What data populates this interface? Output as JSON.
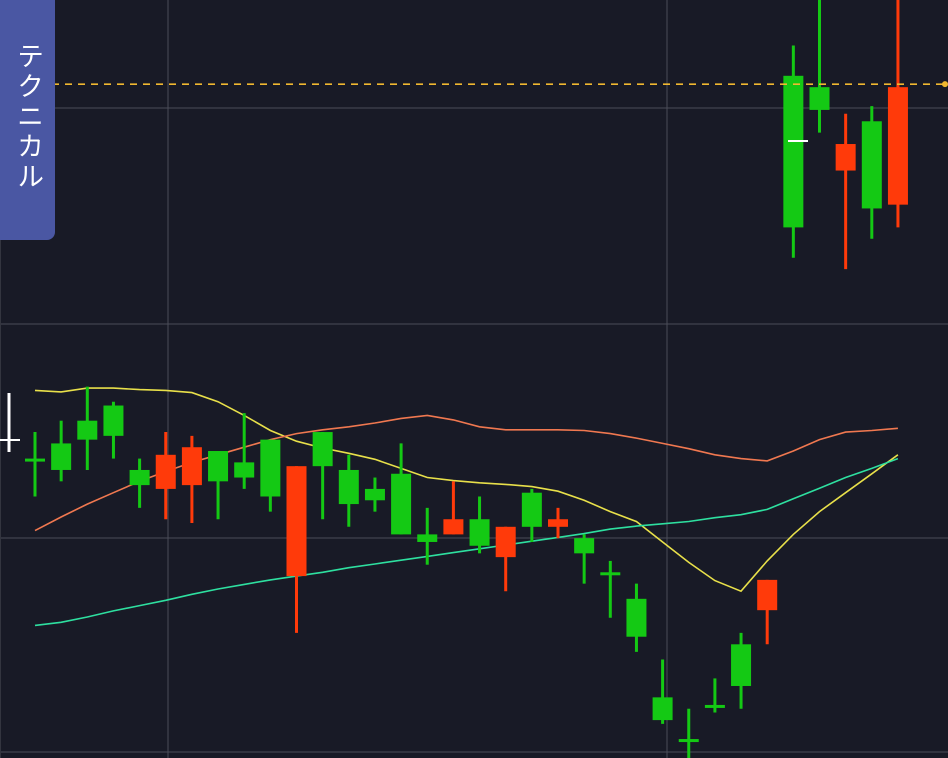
{
  "tab": {
    "label": "テクニカル"
  },
  "colors": {
    "background": "#181a26",
    "grid": "#4a4c58",
    "up": "#14c914",
    "down": "#ff3a0a",
    "ma_short": "#e8e04a",
    "ma_mid": "#f07850",
    "ma_long": "#2ee0a0",
    "reference_line": "#f0b830",
    "tab_bg": "#4a57a3"
  },
  "chart_data": {
    "type": "candlestick",
    "grid": true,
    "reference_line": {
      "value": 88.9,
      "style": "dashed"
    },
    "ylim": [
      0,
      100
    ],
    "candles": [
      {
        "x": 1,
        "open": 39.5,
        "high": 43.0,
        "low": 34.5,
        "close": 39.5
      },
      {
        "x": 2,
        "open": 38.0,
        "high": 44.5,
        "low": 36.5,
        "close": 41.5
      },
      {
        "x": 3,
        "open": 42.0,
        "high": 49.0,
        "low": 38.0,
        "close": 44.5
      },
      {
        "x": 4,
        "open": 42.5,
        "high": 47.0,
        "low": 39.5,
        "close": 46.5
      },
      {
        "x": 5,
        "open": 36.0,
        "high": 39.5,
        "low": 33.0,
        "close": 38.0
      },
      {
        "x": 6,
        "open": 40.0,
        "high": 43.0,
        "low": 31.5,
        "close": 35.5
      },
      {
        "x": 7,
        "open": 41.0,
        "high": 42.5,
        "low": 31.0,
        "close": 36.0
      },
      {
        "x": 8,
        "open": 36.5,
        "high": 40.5,
        "low": 31.5,
        "close": 40.5
      },
      {
        "x": 9,
        "open": 37.0,
        "high": 45.5,
        "low": 35.5,
        "close": 39.0
      },
      {
        "x": 10,
        "open": 34.5,
        "high": 42.0,
        "low": 32.5,
        "close": 42.0
      },
      {
        "x": 11,
        "open": 38.5,
        "high": 38.5,
        "low": 16.5,
        "close": 24.0
      },
      {
        "x": 12,
        "open": 38.5,
        "high": 43.0,
        "low": 31.5,
        "close": 43.0
      },
      {
        "x": 13,
        "open": 33.5,
        "high": 40.0,
        "low": 30.5,
        "close": 38.0
      },
      {
        "x": 14,
        "open": 34.0,
        "high": 37.0,
        "low": 32.5,
        "close": 35.5
      },
      {
        "x": 15,
        "open": 29.5,
        "high": 41.5,
        "low": 29.5,
        "close": 37.5
      },
      {
        "x": 16,
        "open": 28.5,
        "high": 33.0,
        "low": 25.5,
        "close": 29.5
      },
      {
        "x": 17,
        "open": 31.5,
        "high": 36.5,
        "low": 29.5,
        "close": 29.5
      },
      {
        "x": 18,
        "open": 28.0,
        "high": 34.5,
        "low": 27.0,
        "close": 31.5
      },
      {
        "x": 19,
        "open": 30.5,
        "high": 30.5,
        "low": 22.0,
        "close": 26.5
      },
      {
        "x": 20,
        "open": 30.5,
        "high": 35.5,
        "low": 28.5,
        "close": 35.0
      },
      {
        "x": 21,
        "open": 31.5,
        "high": 33.0,
        "low": 29.0,
        "close": 30.5
      },
      {
        "x": 22,
        "open": 27.0,
        "high": 29.5,
        "low": 23.0,
        "close": 29.0
      },
      {
        "x": 23,
        "open": 24.5,
        "high": 26.0,
        "low": 18.5,
        "close": 24.5
      },
      {
        "x": 24,
        "open": 16.0,
        "high": 23.0,
        "low": 14.0,
        "close": 21.0
      },
      {
        "x": 25,
        "open": 5.0,
        "high": 13.0,
        "low": 4.5,
        "close": 8.0
      },
      {
        "x": 26,
        "open": 2.5,
        "high": 6.5,
        "low": 0,
        "close": 2.5
      },
      {
        "x": 27,
        "open": 7.0,
        "high": 10.5,
        "low": 6.0,
        "close": 7.0
      },
      {
        "x": 28,
        "open": 9.5,
        "high": 16.5,
        "low": 6.5,
        "close": 15.0
      },
      {
        "x": 29,
        "open": 23.5,
        "high": 23.5,
        "low": 15.0,
        "close": 19.5
      },
      {
        "x": 30,
        "open": 70.0,
        "high": 94.0,
        "low": 66.0,
        "close": 90.0
      },
      {
        "x": 31,
        "open": 85.5,
        "high": 100,
        "low": 82.5,
        "close": 88.5
      },
      {
        "x": 32,
        "open": 81.0,
        "high": 85.0,
        "low": 64.5,
        "close": 77.5
      },
      {
        "x": 33,
        "open": 72.5,
        "high": 86.0,
        "low": 68.5,
        "close": 84.0
      },
      {
        "x": 34,
        "open": 88.5,
        "high": 100,
        "low": 70.0,
        "close": 73.0
      }
    ],
    "series": [
      {
        "type": "line",
        "color_key": "ma_short",
        "points": [
          [
            1,
            48.5
          ],
          [
            2,
            48.3
          ],
          [
            3,
            48.8
          ],
          [
            4,
            48.8
          ],
          [
            5,
            48.6
          ],
          [
            6,
            48.5
          ],
          [
            7,
            48.2
          ],
          [
            8,
            47.0
          ],
          [
            9,
            45.2
          ],
          [
            10,
            43.2
          ],
          [
            11,
            41.8
          ],
          [
            12,
            40.9
          ],
          [
            13,
            40.2
          ],
          [
            14,
            39.4
          ],
          [
            15,
            38.2
          ],
          [
            16,
            37.0
          ],
          [
            17,
            36.6
          ],
          [
            18,
            36.3
          ],
          [
            19,
            36.1
          ],
          [
            20,
            35.8
          ],
          [
            21,
            35.2
          ],
          [
            22,
            34.0
          ],
          [
            23,
            32.5
          ],
          [
            24,
            31.2
          ],
          [
            25,
            28.5
          ],
          [
            26,
            25.8
          ],
          [
            27,
            23.4
          ],
          [
            28,
            22.0
          ],
          [
            29,
            26.0
          ],
          [
            30,
            29.5
          ],
          [
            31,
            32.5
          ],
          [
            32,
            35.0
          ],
          [
            33,
            37.5
          ],
          [
            34,
            40.0
          ]
        ]
      },
      {
        "type": "line",
        "color_key": "ma_mid",
        "points": [
          [
            1,
            30.0
          ],
          [
            2,
            31.8
          ],
          [
            3,
            33.5
          ],
          [
            4,
            35.0
          ],
          [
            5,
            36.5
          ],
          [
            6,
            37.8
          ],
          [
            7,
            39.0
          ],
          [
            8,
            40.0
          ],
          [
            9,
            41.0
          ],
          [
            10,
            42.0
          ],
          [
            11,
            42.8
          ],
          [
            12,
            43.3
          ],
          [
            13,
            43.7
          ],
          [
            14,
            44.2
          ],
          [
            15,
            44.8
          ],
          [
            16,
            45.2
          ],
          [
            17,
            44.6
          ],
          [
            18,
            43.7
          ],
          [
            19,
            43.3
          ],
          [
            20,
            43.3
          ],
          [
            21,
            43.3
          ],
          [
            22,
            43.2
          ],
          [
            23,
            42.8
          ],
          [
            24,
            42.2
          ],
          [
            25,
            41.5
          ],
          [
            26,
            40.8
          ],
          [
            27,
            40.0
          ],
          [
            28,
            39.5
          ],
          [
            29,
            39.2
          ],
          [
            30,
            40.5
          ],
          [
            31,
            42.0
          ],
          [
            32,
            43.0
          ],
          [
            33,
            43.2
          ],
          [
            34,
            43.5
          ]
        ]
      },
      {
        "type": "line",
        "color_key": "ma_long",
        "points": [
          [
            1,
            17.5
          ],
          [
            2,
            17.9
          ],
          [
            3,
            18.6
          ],
          [
            4,
            19.4
          ],
          [
            5,
            20.1
          ],
          [
            6,
            20.8
          ],
          [
            7,
            21.6
          ],
          [
            8,
            22.3
          ],
          [
            9,
            22.9
          ],
          [
            10,
            23.5
          ],
          [
            11,
            24.0
          ],
          [
            12,
            24.5
          ],
          [
            13,
            25.1
          ],
          [
            14,
            25.6
          ],
          [
            15,
            26.1
          ],
          [
            16,
            26.6
          ],
          [
            17,
            27.1
          ],
          [
            18,
            27.6
          ],
          [
            19,
            28.1
          ],
          [
            20,
            28.6
          ],
          [
            21,
            29.1
          ],
          [
            22,
            29.6
          ],
          [
            23,
            30.2
          ],
          [
            24,
            30.6
          ],
          [
            25,
            30.9
          ],
          [
            26,
            31.2
          ],
          [
            27,
            31.7
          ],
          [
            28,
            32.1
          ],
          [
            29,
            32.8
          ],
          [
            30,
            34.2
          ],
          [
            31,
            35.6
          ],
          [
            32,
            37.0
          ],
          [
            33,
            38.2
          ],
          [
            34,
            39.5
          ]
        ]
      }
    ]
  }
}
